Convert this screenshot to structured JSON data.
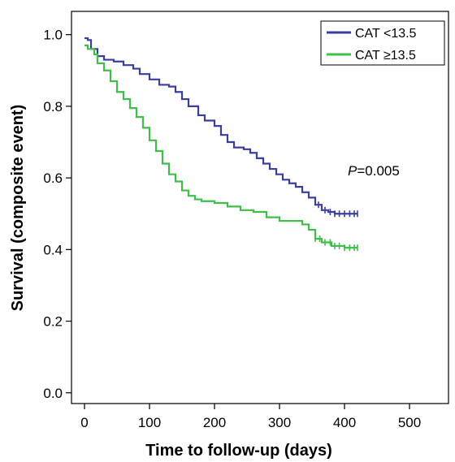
{
  "chart_data": {
    "type": "line",
    "title": "",
    "xlabel": "Time to follow-up (days)",
    "ylabel": "Survival (composite event)",
    "xlim": [
      -20,
      560
    ],
    "ylim": [
      -0.03,
      1.065
    ],
    "xticks": [
      0,
      100,
      200,
      300,
      400,
      500
    ],
    "yticks": [
      0.0,
      0.2,
      0.4,
      0.6,
      0.8,
      1.0
    ],
    "xtick_labels": [
      "0",
      "100",
      "200",
      "300",
      "400",
      "500"
    ],
    "ytick_labels": [
      "0.0",
      "0.2",
      "0.4",
      "0.6",
      "0.8",
      "1.0"
    ],
    "grid": false,
    "legend_position": "top-right",
    "annotation": {
      "italic": "P",
      "rest": "=0.005",
      "x": 365,
      "y": 0.62
    },
    "series": [
      {
        "name": "CAT <13.5",
        "color": "#3a3f9e",
        "points": [
          [
            0,
            0.99
          ],
          [
            5,
            0.985
          ],
          [
            10,
            0.96
          ],
          [
            20,
            0.94
          ],
          [
            30,
            0.93
          ],
          [
            45,
            0.925
          ],
          [
            60,
            0.915
          ],
          [
            75,
            0.905
          ],
          [
            85,
            0.89
          ],
          [
            100,
            0.875
          ],
          [
            115,
            0.86
          ],
          [
            130,
            0.855
          ],
          [
            140,
            0.84
          ],
          [
            150,
            0.82
          ],
          [
            160,
            0.8
          ],
          [
            175,
            0.775
          ],
          [
            185,
            0.76
          ],
          [
            200,
            0.745
          ],
          [
            210,
            0.72
          ],
          [
            220,
            0.7
          ],
          [
            230,
            0.685
          ],
          [
            245,
            0.68
          ],
          [
            255,
            0.67
          ],
          [
            265,
            0.655
          ],
          [
            275,
            0.64
          ],
          [
            285,
            0.625
          ],
          [
            295,
            0.61
          ],
          [
            305,
            0.595
          ],
          [
            315,
            0.585
          ],
          [
            325,
            0.575
          ],
          [
            335,
            0.56
          ],
          [
            345,
            0.545
          ],
          [
            355,
            0.525
          ],
          [
            365,
            0.51
          ],
          [
            375,
            0.505
          ],
          [
            385,
            0.5
          ],
          [
            400,
            0.5
          ],
          [
            420,
            0.5
          ]
        ],
        "censor_x": [
          360,
          370,
          378,
          385,
          392,
          400,
          408,
          415,
          420
        ]
      },
      {
        "name": "CAT ≥13.5",
        "color": "#3fbf4a",
        "points": [
          [
            0,
            0.97
          ],
          [
            5,
            0.96
          ],
          [
            15,
            0.945
          ],
          [
            20,
            0.92
          ],
          [
            30,
            0.9
          ],
          [
            40,
            0.87
          ],
          [
            50,
            0.84
          ],
          [
            60,
            0.82
          ],
          [
            70,
            0.795
          ],
          [
            80,
            0.77
          ],
          [
            90,
            0.74
          ],
          [
            100,
            0.705
          ],
          [
            110,
            0.675
          ],
          [
            120,
            0.64
          ],
          [
            130,
            0.61
          ],
          [
            140,
            0.59
          ],
          [
            150,
            0.565
          ],
          [
            160,
            0.55
          ],
          [
            170,
            0.54
          ],
          [
            180,
            0.535
          ],
          [
            200,
            0.53
          ],
          [
            220,
            0.52
          ],
          [
            240,
            0.51
          ],
          [
            260,
            0.505
          ],
          [
            280,
            0.49
          ],
          [
            300,
            0.48
          ],
          [
            320,
            0.48
          ],
          [
            335,
            0.47
          ],
          [
            345,
            0.455
          ],
          [
            355,
            0.43
          ],
          [
            365,
            0.42
          ],
          [
            380,
            0.41
          ],
          [
            400,
            0.405
          ],
          [
            420,
            0.405
          ]
        ],
        "censor_x": [
          355,
          362,
          370,
          378,
          385,
          392,
          400,
          408,
          415,
          420
        ]
      }
    ]
  }
}
